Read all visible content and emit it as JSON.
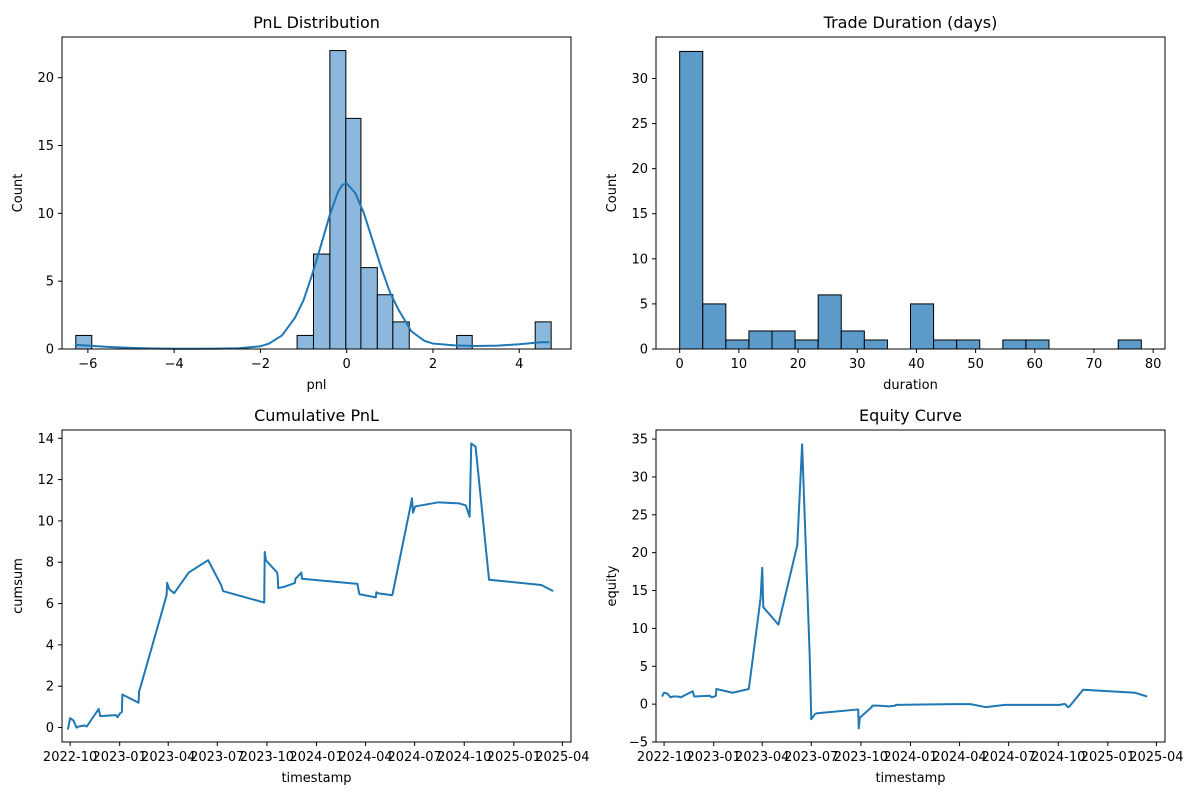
{
  "chart_data": [
    {
      "type": "bar",
      "title": "PnL Distribution",
      "xlabel": "pnl",
      "ylabel": "Count",
      "xlim": [
        -6.6,
        5.2
      ],
      "ylim": [
        0,
        23
      ],
      "xticks": [
        -6,
        -4,
        -2,
        0,
        2,
        4
      ],
      "xtick_labels": [
        "−6",
        "−4",
        "−2",
        "0",
        "2",
        "4"
      ],
      "yticks": [
        0,
        5,
        10,
        15,
        20
      ],
      "yticks_labels": [
        "0",
        "5",
        "10",
        "15",
        "20"
      ],
      "bar_color": "#8bb8dc",
      "edge_color": "#000000",
      "kde_color": "#1f77b4",
      "bins": [
        {
          "x0": -6.28,
          "x1": -5.91,
          "count": 1
        },
        {
          "x0": -1.15,
          "x1": -0.77,
          "count": 1
        },
        {
          "x0": -0.77,
          "x1": -0.39,
          "count": 7
        },
        {
          "x0": -0.39,
          "x1": -0.02,
          "count": 22
        },
        {
          "x0": -0.02,
          "x1": 0.33,
          "count": 17
        },
        {
          "x0": 0.33,
          "x1": 0.71,
          "count": 6
        },
        {
          "x0": 0.71,
          "x1": 1.07,
          "count": 4
        },
        {
          "x0": 1.07,
          "x1": 1.45,
          "count": 2
        },
        {
          "x0": 2.55,
          "x1": 2.91,
          "count": 1
        },
        {
          "x0": 4.37,
          "x1": 4.74,
          "count": 2
        }
      ],
      "kde": {
        "x": [
          -6.3,
          -6.0,
          -5.5,
          -5.0,
          -4.5,
          -4.0,
          -3.5,
          -3.0,
          -2.5,
          -2.0,
          -1.8,
          -1.5,
          -1.2,
          -1.0,
          -0.8,
          -0.6,
          -0.4,
          -0.2,
          -0.1,
          0.0,
          0.2,
          0.4,
          0.6,
          0.8,
          1.0,
          1.2,
          1.5,
          1.8,
          2.0,
          2.5,
          3.0,
          3.5,
          4.0,
          4.5,
          4.7
        ],
        "y": [
          0.3,
          0.25,
          0.15,
          0.08,
          0.04,
          0.02,
          0.02,
          0.03,
          0.06,
          0.2,
          0.4,
          1.0,
          2.3,
          3.6,
          5.5,
          7.6,
          9.8,
          11.6,
          12.1,
          12.2,
          11.5,
          10.0,
          8.0,
          6.0,
          4.2,
          2.9,
          1.3,
          0.6,
          0.4,
          0.27,
          0.22,
          0.25,
          0.35,
          0.5,
          0.5
        ]
      }
    },
    {
      "type": "bar",
      "title": "Trade Duration (days)",
      "xlabel": "duration",
      "ylabel": "Count",
      "xlim": [
        -4,
        82
      ],
      "ylim": [
        0,
        34.6
      ],
      "xticks": [
        0,
        10,
        20,
        30,
        40,
        50,
        60,
        70,
        80
      ],
      "yticks": [
        0,
        5,
        10,
        15,
        20,
        25,
        30
      ],
      "bar_color": "#5b9ac9",
      "edge_color": "#000000",
      "bins": [
        {
          "x0": 0,
          "x1": 3.9,
          "count": 33
        },
        {
          "x0": 3.9,
          "x1": 7.8,
          "count": 5
        },
        {
          "x0": 7.8,
          "x1": 11.7,
          "count": 1
        },
        {
          "x0": 11.7,
          "x1": 15.6,
          "count": 2
        },
        {
          "x0": 15.6,
          "x1": 19.5,
          "count": 2
        },
        {
          "x0": 19.5,
          "x1": 23.4,
          "count": 1
        },
        {
          "x0": 23.4,
          "x1": 27.3,
          "count": 6
        },
        {
          "x0": 27.3,
          "x1": 31.2,
          "count": 2
        },
        {
          "x0": 31.2,
          "x1": 35.1,
          "count": 1
        },
        {
          "x0": 39.0,
          "x1": 42.9,
          "count": 5
        },
        {
          "x0": 42.9,
          "x1": 46.8,
          "count": 1
        },
        {
          "x0": 46.8,
          "x1": 50.7,
          "count": 1
        },
        {
          "x0": 54.6,
          "x1": 58.5,
          "count": 1
        },
        {
          "x0": 58.5,
          "x1": 62.4,
          "count": 1
        },
        {
          "x0": 74.1,
          "x1": 78.0,
          "count": 1
        }
      ]
    },
    {
      "type": "line",
      "title": "Cumulative PnL",
      "xlabel": "timestamp",
      "ylabel": "cumsum",
      "xlim": [
        "2022-09-16",
        "2025-04-17"
      ],
      "ylim": [
        -0.7,
        14.4
      ],
      "xticks": [
        "2022-10-01",
        "2023-01-01",
        "2023-04-01",
        "2023-07-01",
        "2023-10-01",
        "2024-01-01",
        "2024-04-01",
        "2024-07-01",
        "2024-10-01",
        "2025-01-01",
        "2025-04-01"
      ],
      "xtick_labels": [
        "2022-10",
        "2023-01",
        "2023-04",
        "2023-07",
        "2023-10",
        "2024-01",
        "2024-04",
        "2024-07",
        "2024-10",
        "2025-01",
        "2025-04"
      ],
      "yticks": [
        0,
        2,
        4,
        6,
        8,
        10,
        12,
        14
      ],
      "line_color": "#1f77b4",
      "x": [
        "2022-09-27",
        "2022-10-01",
        "2022-10-07",
        "2022-10-13",
        "2022-10-17",
        "2022-10-27",
        "2022-11-01",
        "2022-11-23",
        "2022-11-26",
        "2022-12-25",
        "2022-12-28",
        "2023-01-02",
        "2023-01-05",
        "2023-01-06",
        "2023-02-05",
        "2023-02-06",
        "2023-02-09",
        "2023-03-29",
        "2023-03-30",
        "2023-04-03",
        "2023-04-12",
        "2023-05-09",
        "2023-06-14",
        "2023-06-16",
        "2023-07-08",
        "2023-07-12",
        "2023-09-26",
        "2023-09-27",
        "2023-09-29",
        "2023-10-20",
        "2023-10-21",
        "2023-10-22",
        "2023-11-01",
        "2023-11-22",
        "2023-11-23",
        "2023-12-04",
        "2023-12-05",
        "2024-03-17",
        "2024-03-20",
        "2024-03-21",
        "2024-04-20",
        "2024-04-21",
        "2024-04-24",
        "2024-05-20",
        "2024-05-21",
        "2024-06-24",
        "2024-06-26",
        "2024-06-28",
        "2024-07-02",
        "2024-08-14",
        "2024-08-15",
        "2024-09-21",
        "2024-10-04",
        "2024-10-11",
        "2024-10-14",
        "2024-10-19",
        "2024-10-22",
        "2024-11-16",
        "2025-02-21",
        "2025-03-15"
      ],
      "y": [
        -0.1,
        0.45,
        0.35,
        0.0,
        0.05,
        0.1,
        0.05,
        0.9,
        0.55,
        0.6,
        0.5,
        0.7,
        0.75,
        1.6,
        1.2,
        1.75,
        2.0,
        6.4,
        7.0,
        6.7,
        6.5,
        7.5,
        8.1,
        8.0,
        6.9,
        6.6,
        6.05,
        8.5,
        8.1,
        7.5,
        7.3,
        6.75,
        6.8,
        7.0,
        7.2,
        7.5,
        7.2,
        6.95,
        6.5,
        6.45,
        6.3,
        6.55,
        6.5,
        6.4,
        6.45,
        10.8,
        11.1,
        10.4,
        10.7,
        10.9,
        10.9,
        10.85,
        10.75,
        10.2,
        13.75,
        13.65,
        13.6,
        7.15,
        6.9,
        6.6
      ]
    },
    {
      "type": "line",
      "title": "Equity Curve",
      "xlabel": "timestamp",
      "ylabel": "equity",
      "xlim": [
        "2022-09-16",
        "2025-04-17"
      ],
      "ylim": [
        -5,
        36.2
      ],
      "xticks": [
        "2022-10-01",
        "2023-01-01",
        "2023-04-01",
        "2023-07-01",
        "2023-10-01",
        "2024-01-01",
        "2024-04-01",
        "2024-07-01",
        "2024-10-01",
        "2025-01-01",
        "2025-04-01"
      ],
      "xtick_labels": [
        "2022-10",
        "2023-01",
        "2023-04",
        "2023-07",
        "2023-10",
        "2024-01",
        "2024-04",
        "2024-07",
        "2024-10",
        "2025-01",
        "2025-04"
      ],
      "yticks": [
        -5,
        0,
        5,
        10,
        15,
        20,
        25,
        30,
        35
      ],
      "yticks_labels": [
        "−5",
        "0",
        "5",
        "10",
        "15",
        "20",
        "25",
        "30",
        "35"
      ],
      "line_color": "#1f77b4",
      "x": [
        "2022-09-27",
        "2022-10-01",
        "2022-10-07",
        "2022-10-13",
        "2022-10-17",
        "2022-10-27",
        "2022-11-01",
        "2022-11-23",
        "2022-11-26",
        "2022-12-25",
        "2022-12-28",
        "2023-01-02",
        "2023-01-05",
        "2023-01-06",
        "2023-02-05",
        "2023-03-07",
        "2023-03-09",
        "2023-03-29",
        "2023-04-01",
        "2023-04-03",
        "2023-05-01",
        "2023-06-05",
        "2023-06-14",
        "2023-06-28",
        "2023-07-01",
        "2023-07-08",
        "2023-07-12",
        "2023-09-26",
        "2023-09-27",
        "2023-09-29",
        "2023-10-21",
        "2023-10-22",
        "2023-11-01",
        "2023-11-22",
        "2023-11-23",
        "2023-12-04",
        "2023-12-05",
        "2024-03-17",
        "2024-03-21",
        "2024-04-21",
        "2024-05-20",
        "2024-06-24",
        "2024-06-26",
        "2024-07-02",
        "2024-08-14",
        "2024-09-21",
        "2024-10-04",
        "2024-10-11",
        "2024-10-14",
        "2024-10-19",
        "2024-10-22",
        "2024-11-16",
        "2025-02-21",
        "2025-03-15"
      ],
      "y": [
        1.0,
        1.5,
        1.4,
        0.9,
        1.0,
        1.0,
        0.9,
        1.7,
        1.0,
        1.1,
        0.9,
        1.0,
        1.1,
        2.0,
        1.5,
        2.0,
        3.0,
        14.0,
        18.0,
        12.8,
        10.5,
        21.0,
        34.3,
        6.5,
        -2.0,
        -1.3,
        -1.2,
        -0.7,
        -3.2,
        -1.8,
        -0.4,
        -0.2,
        -0.2,
        -0.3,
        -0.3,
        -0.2,
        -0.1,
        0.0,
        0.0,
        0.0,
        -0.4,
        -0.1,
        -0.1,
        -0.1,
        -0.1,
        -0.1,
        -0.1,
        0.0,
        0.0,
        -0.4,
        -0.3,
        1.9,
        1.5,
        1.0
      ]
    }
  ]
}
